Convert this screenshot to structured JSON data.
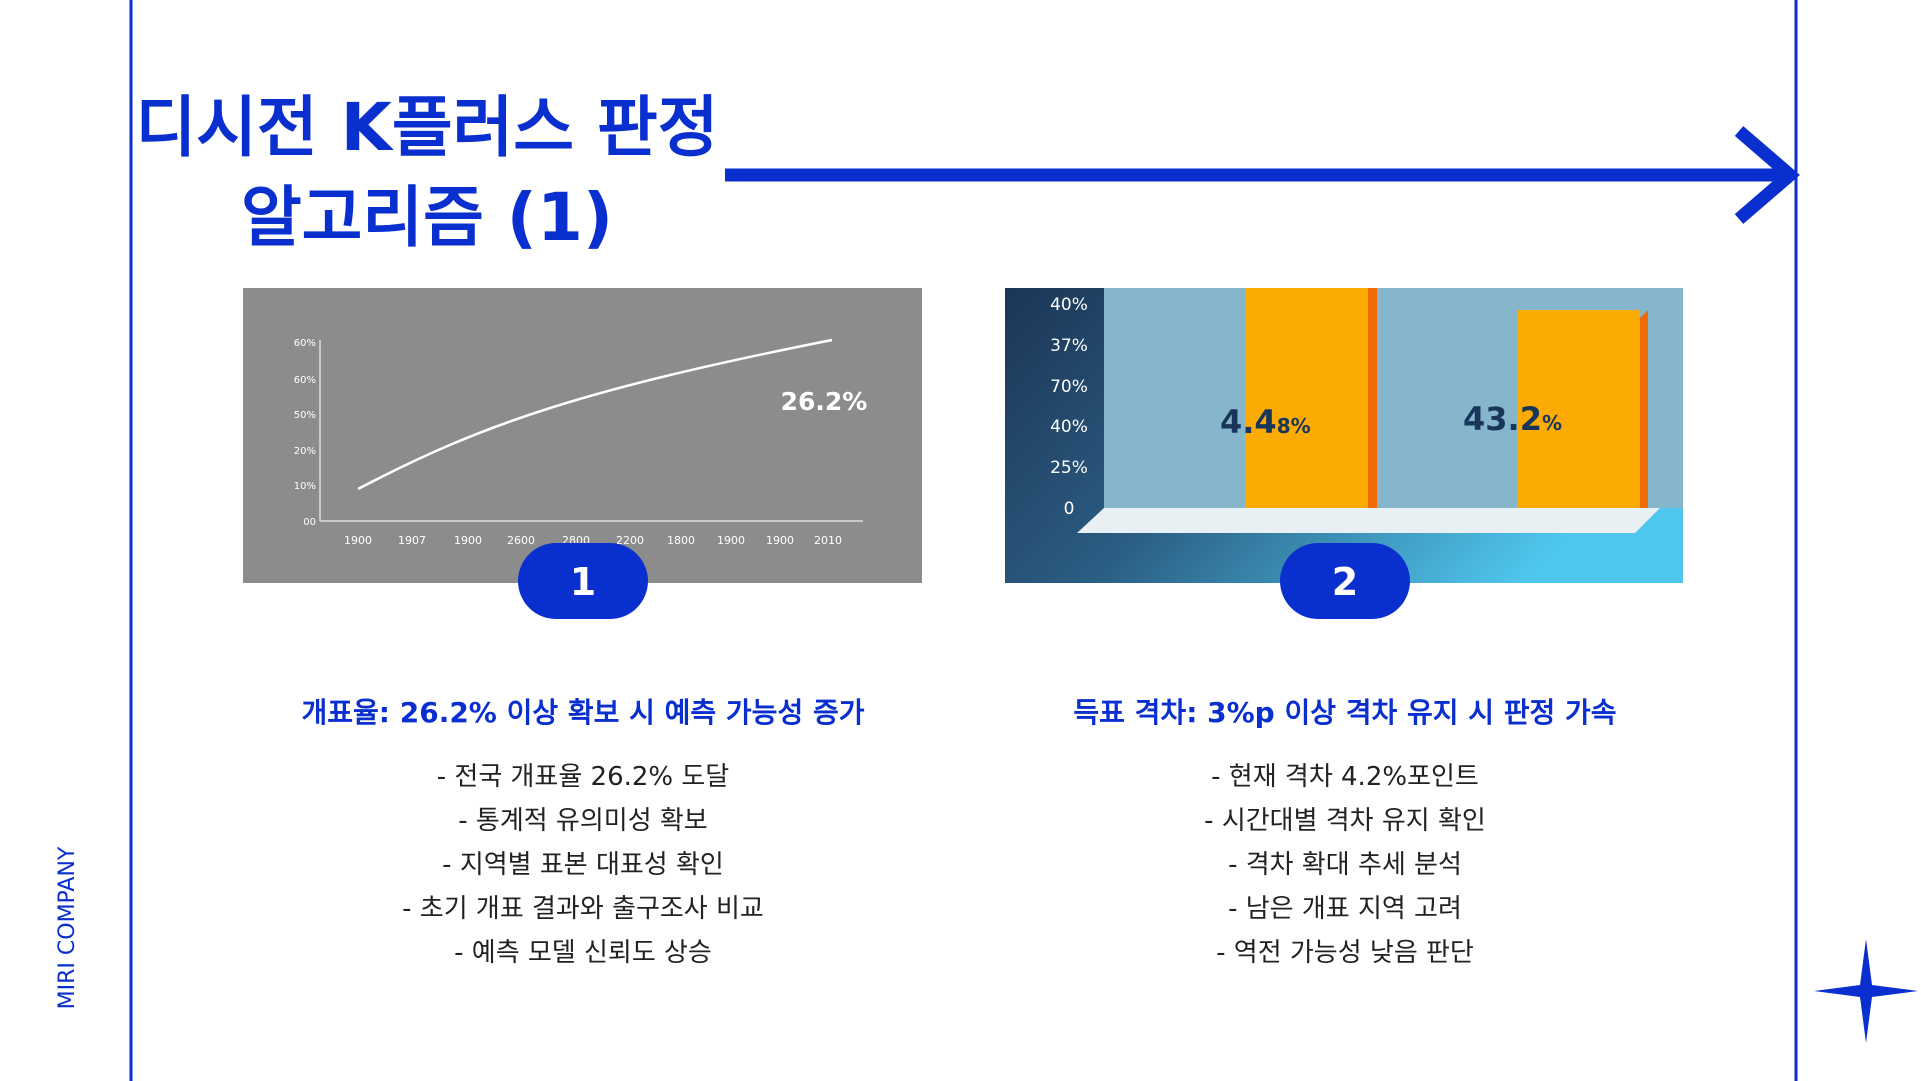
{
  "header": {
    "title_lines": [
      "디시전 K플러스 판정",
      "알고리즘 (1)"
    ]
  },
  "brand": "MIRI COMPANY",
  "panels": [
    {
      "image": {
        "y_labels": [
          "60%",
          "60%",
          "50%",
          "20%",
          "10%",
          "00"
        ],
        "x_labels": [
          "1900",
          "1907",
          "1900",
          "2600",
          "2800",
          "2200",
          "1800",
          "1900",
          "1900",
          "2010"
        ],
        "annotation": "26.2%"
      },
      "badge": "1",
      "heading": "개표율: 26.2% 이상 확보 시 예측 가능성 증가",
      "bullets": [
        "- 전국 개표율 26.2% 도달",
        "- 통계적 유의미성 확보",
        "- 지역별 표본 대표성 확인",
        "- 초기 개표 결과와 출구조사 비교",
        "- 예측 모델 신뢰도 상승"
      ]
    },
    {
      "image": {
        "y_labels": [
          "40%",
          "37%",
          "70%",
          "40%",
          "25%",
          "0"
        ],
        "bar_labels": [
          [
            "4.4",
            "8%"
          ],
          [
            "43.2",
            "%"
          ]
        ]
      },
      "badge": "2",
      "heading": "득표 격차: 3%p 이상 격차 유지 시 판정 가속",
      "bullets": [
        "- 현재 격차 4.2%포인트",
        "- 시간대별 격차 유지 확인",
        "- 격차 확대 추세 분석",
        "- 남은 개표 지역 고려",
        "- 역전 가능성 낮음 판단"
      ]
    }
  ]
}
